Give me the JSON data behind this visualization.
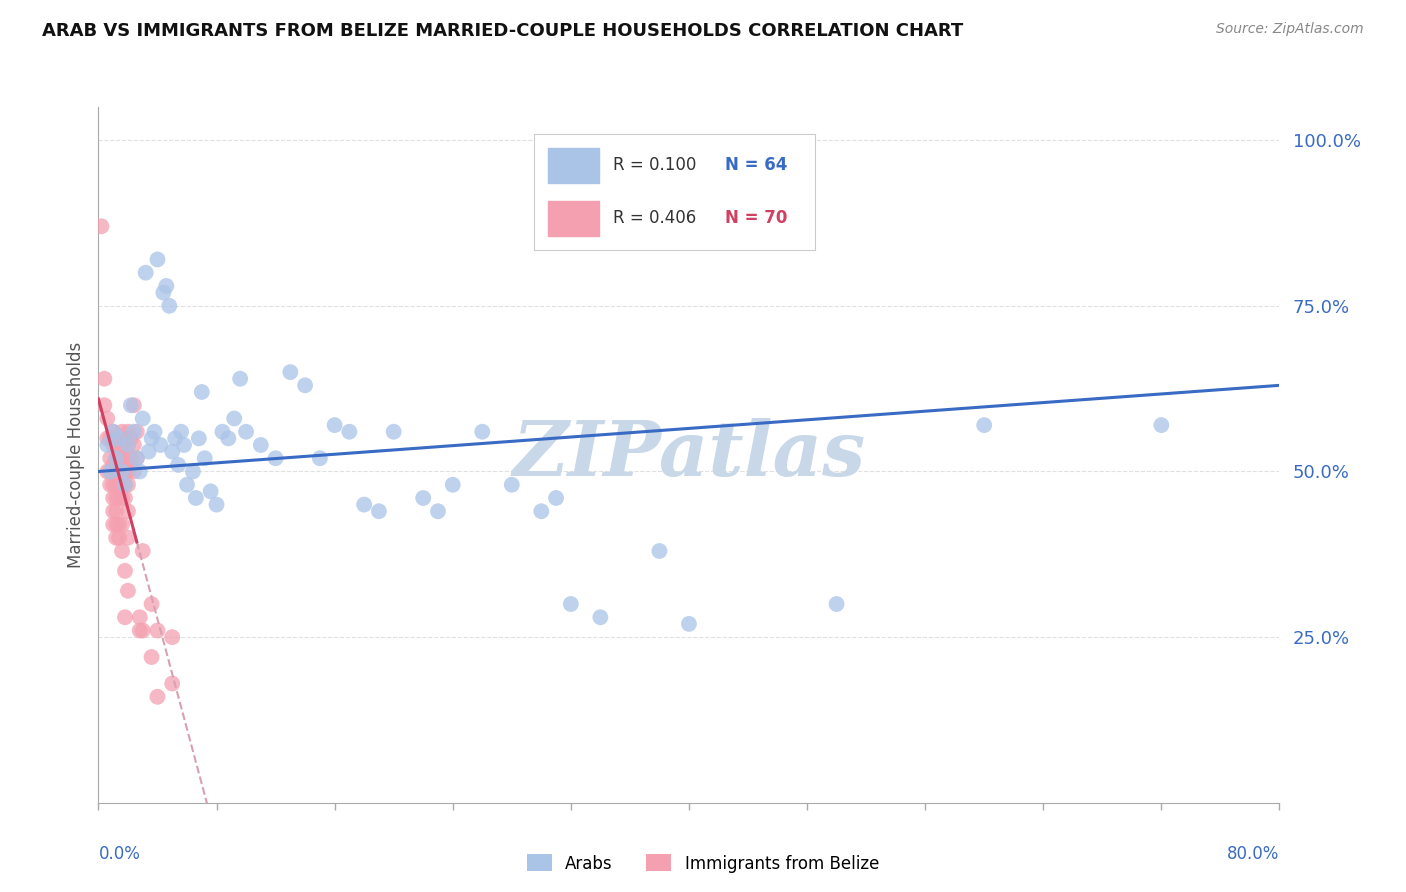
{
  "title": "ARAB VS IMMIGRANTS FROM BELIZE MARRIED-COUPLE HOUSEHOLDS CORRELATION CHART",
  "source": "Source: ZipAtlas.com",
  "ylabel": "Married-couple Households",
  "ytick_labels": [
    "100.0%",
    "75.0%",
    "50.0%",
    "25.0%"
  ],
  "ytick_values": [
    1.0,
    0.75,
    0.5,
    0.25
  ],
  "xlim": [
    0.0,
    0.4
  ],
  "ylim": [
    0.0,
    1.05
  ],
  "background_color": "#ffffff",
  "grid_color": "#e0e0e0",
  "watermark_text": "ZIPatlas",
  "watermark_color": "#c8d8e8",
  "legend_arab_r": "R = 0.100",
  "legend_arab_n": "N = 64",
  "legend_belize_r": "R = 0.406",
  "legend_belize_n": "N = 70",
  "arab_color": "#aac4e8",
  "belize_color": "#f4a0b0",
  "arab_line_color": "#3a6bc4",
  "belize_line_color": "#d04060",
  "belize_dashed_color": "#d8a0b0",
  "xtick_left_label": "0.0%",
  "xtick_right_label": "80.0%",
  "arab_scatter": [
    [
      0.003,
      0.54
    ],
    [
      0.004,
      0.5
    ],
    [
      0.005,
      0.56
    ],
    [
      0.006,
      0.52
    ],
    [
      0.007,
      0.55
    ],
    [
      0.008,
      0.5
    ],
    [
      0.009,
      0.48
    ],
    [
      0.01,
      0.54
    ],
    [
      0.011,
      0.6
    ],
    [
      0.012,
      0.56
    ],
    [
      0.013,
      0.52
    ],
    [
      0.014,
      0.5
    ],
    [
      0.015,
      0.58
    ],
    [
      0.016,
      0.8
    ],
    [
      0.017,
      0.53
    ],
    [
      0.018,
      0.55
    ],
    [
      0.019,
      0.56
    ],
    [
      0.02,
      0.82
    ],
    [
      0.021,
      0.54
    ],
    [
      0.022,
      0.77
    ],
    [
      0.023,
      0.78
    ],
    [
      0.024,
      0.75
    ],
    [
      0.025,
      0.53
    ],
    [
      0.026,
      0.55
    ],
    [
      0.027,
      0.51
    ],
    [
      0.028,
      0.56
    ],
    [
      0.029,
      0.54
    ],
    [
      0.03,
      0.48
    ],
    [
      0.032,
      0.5
    ],
    [
      0.033,
      0.46
    ],
    [
      0.034,
      0.55
    ],
    [
      0.035,
      0.62
    ],
    [
      0.036,
      0.52
    ],
    [
      0.038,
      0.47
    ],
    [
      0.04,
      0.45
    ],
    [
      0.042,
      0.56
    ],
    [
      0.044,
      0.55
    ],
    [
      0.046,
      0.58
    ],
    [
      0.048,
      0.64
    ],
    [
      0.05,
      0.56
    ],
    [
      0.055,
      0.54
    ],
    [
      0.06,
      0.52
    ],
    [
      0.065,
      0.65
    ],
    [
      0.07,
      0.63
    ],
    [
      0.075,
      0.52
    ],
    [
      0.08,
      0.57
    ],
    [
      0.085,
      0.56
    ],
    [
      0.09,
      0.45
    ],
    [
      0.095,
      0.44
    ],
    [
      0.1,
      0.56
    ],
    [
      0.11,
      0.46
    ],
    [
      0.115,
      0.44
    ],
    [
      0.12,
      0.48
    ],
    [
      0.13,
      0.56
    ],
    [
      0.14,
      0.48
    ],
    [
      0.15,
      0.44
    ],
    [
      0.155,
      0.46
    ],
    [
      0.16,
      0.3
    ],
    [
      0.17,
      0.28
    ],
    [
      0.19,
      0.38
    ],
    [
      0.2,
      0.27
    ],
    [
      0.25,
      0.3
    ],
    [
      0.3,
      0.57
    ],
    [
      0.36,
      0.57
    ]
  ],
  "belize_scatter": [
    [
      0.001,
      0.87
    ],
    [
      0.002,
      0.64
    ],
    [
      0.002,
      0.6
    ],
    [
      0.003,
      0.58
    ],
    [
      0.003,
      0.55
    ],
    [
      0.003,
      0.5
    ],
    [
      0.004,
      0.55
    ],
    [
      0.004,
      0.52
    ],
    [
      0.004,
      0.5
    ],
    [
      0.004,
      0.48
    ],
    [
      0.005,
      0.56
    ],
    [
      0.005,
      0.54
    ],
    [
      0.005,
      0.51
    ],
    [
      0.005,
      0.48
    ],
    [
      0.005,
      0.46
    ],
    [
      0.005,
      0.44
    ],
    [
      0.005,
      0.42
    ],
    [
      0.006,
      0.55
    ],
    [
      0.006,
      0.52
    ],
    [
      0.006,
      0.5
    ],
    [
      0.006,
      0.48
    ],
    [
      0.006,
      0.46
    ],
    [
      0.006,
      0.44
    ],
    [
      0.006,
      0.42
    ],
    [
      0.006,
      0.4
    ],
    [
      0.007,
      0.54
    ],
    [
      0.007,
      0.52
    ],
    [
      0.007,
      0.5
    ],
    [
      0.007,
      0.48
    ],
    [
      0.007,
      0.46
    ],
    [
      0.007,
      0.42
    ],
    [
      0.007,
      0.4
    ],
    [
      0.008,
      0.56
    ],
    [
      0.008,
      0.54
    ],
    [
      0.008,
      0.52
    ],
    [
      0.008,
      0.5
    ],
    [
      0.008,
      0.46
    ],
    [
      0.008,
      0.42
    ],
    [
      0.008,
      0.38
    ],
    [
      0.009,
      0.55
    ],
    [
      0.009,
      0.52
    ],
    [
      0.009,
      0.5
    ],
    [
      0.009,
      0.48
    ],
    [
      0.009,
      0.46
    ],
    [
      0.009,
      0.35
    ],
    [
      0.009,
      0.28
    ],
    [
      0.01,
      0.56
    ],
    [
      0.01,
      0.54
    ],
    [
      0.01,
      0.5
    ],
    [
      0.01,
      0.48
    ],
    [
      0.01,
      0.44
    ],
    [
      0.01,
      0.4
    ],
    [
      0.01,
      0.32
    ],
    [
      0.011,
      0.55
    ],
    [
      0.011,
      0.52
    ],
    [
      0.012,
      0.6
    ],
    [
      0.012,
      0.54
    ],
    [
      0.012,
      0.5
    ],
    [
      0.013,
      0.56
    ],
    [
      0.013,
      0.52
    ],
    [
      0.014,
      0.28
    ],
    [
      0.014,
      0.26
    ],
    [
      0.015,
      0.38
    ],
    [
      0.015,
      0.26
    ],
    [
      0.018,
      0.3
    ],
    [
      0.018,
      0.22
    ],
    [
      0.02,
      0.26
    ],
    [
      0.02,
      0.16
    ],
    [
      0.025,
      0.25
    ],
    [
      0.025,
      0.18
    ]
  ]
}
